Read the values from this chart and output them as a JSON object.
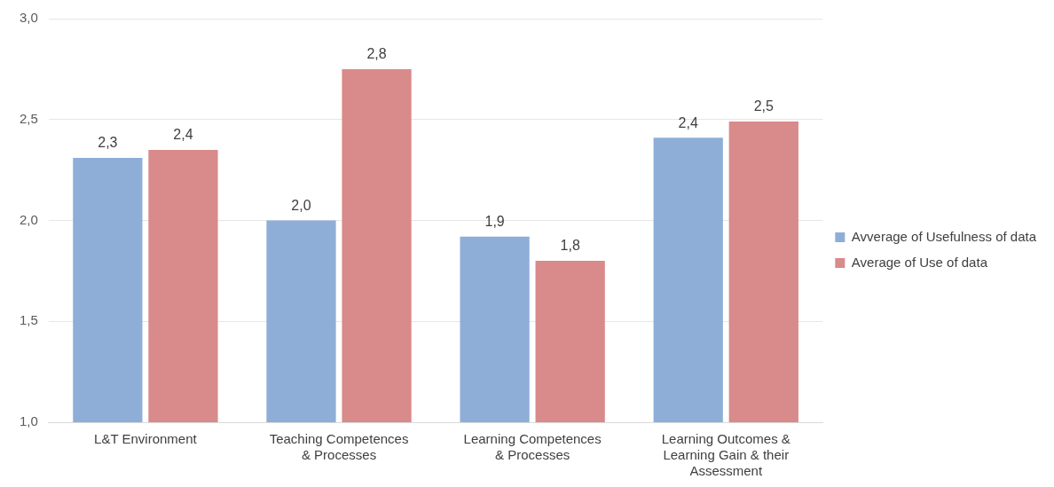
{
  "chart_data": {
    "type": "bar",
    "categories": [
      "L&T Environment",
      "Teaching Competences & Processes",
      "Learning Competences & Processes",
      "Learning Outcomes & Learning Gain & their Assessment"
    ],
    "series": [
      {
        "name": "Avverage of Usefulness of data",
        "color": "#8eaed8",
        "values": [
          2.31,
          2.0,
          1.92,
          2.41
        ],
        "value_labels": [
          "2,3",
          "2,0",
          "1,9",
          "2,4"
        ]
      },
      {
        "name": "Average of Use of data",
        "color": "#d98a8a",
        "values": [
          2.35,
          2.75,
          1.8,
          2.49
        ],
        "value_labels": [
          "2,4",
          "2,8",
          "1,8",
          "2,5"
        ]
      }
    ],
    "ylim": [
      1,
      3
    ],
    "yticks": [
      {
        "value": 1,
        "label": "1,0"
      },
      {
        "value": 1.5,
        "label": "1,5"
      },
      {
        "value": 2,
        "label": "2,0"
      },
      {
        "value": 2.5,
        "label": "2,5"
      },
      {
        "value": 3,
        "label": "3,0"
      }
    ],
    "grid": "y",
    "legend": "right"
  }
}
